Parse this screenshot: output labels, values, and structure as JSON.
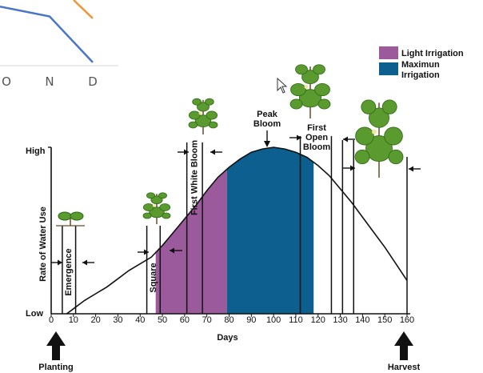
{
  "chart_data": [
    {
      "type": "line",
      "note_visible": "partial inset chart cropped at top-left",
      "x_ticks": [
        "O",
        "N",
        "D"
      ],
      "series": [
        {
          "color": "#f0963a",
          "values": [
            null,
            null,
            0.72
          ]
        },
        {
          "color": "#4a76c8",
          "values": [
            0.9,
            0.75,
            0.05
          ]
        }
      ]
    },
    {
      "type": "area",
      "xlabel": "Days",
      "ylabel": "Rate of Water Use",
      "y_ticks": [
        "Low",
        "High"
      ],
      "x_ticks": [
        0,
        10,
        20,
        30,
        40,
        50,
        60,
        70,
        80,
        90,
        100,
        110,
        120,
        130,
        140,
        150,
        160
      ],
      "xlim": [
        0,
        160
      ],
      "ylim": [
        0,
        1
      ],
      "curve": {
        "x": [
          7,
          10,
          15,
          20,
          25,
          30,
          35,
          40,
          45,
          50,
          55,
          60,
          65,
          70,
          75,
          80,
          85,
          90,
          95,
          100,
          105,
          110,
          115,
          120,
          125,
          130,
          135,
          140,
          145,
          150,
          155,
          160
        ],
        "y": [
          0.0,
          0.03,
          0.08,
          0.12,
          0.16,
          0.21,
          0.26,
          0.3,
          0.34,
          0.41,
          0.49,
          0.57,
          0.65,
          0.74,
          0.82,
          0.88,
          0.93,
          0.97,
          0.99,
          1.0,
          0.99,
          0.97,
          0.94,
          0.89,
          0.83,
          0.75,
          0.67,
          0.58,
          0.49,
          0.4,
          0.3,
          0.2
        ]
      },
      "shaded_regions": [
        {
          "name": "Light Irrigation",
          "x0": 47,
          "x1": 79,
          "color": "#9b5a9b"
        },
        {
          "name": "Maximun Irrigation",
          "x0": 79,
          "x1": 118,
          "color": "#0d5f8f"
        }
      ],
      "legend": {
        "placement": "top-right",
        "entries": [
          {
            "label": "Light Irrigation",
            "color": "#9b5a9b"
          },
          {
            "label": "Maximun Irrigation",
            "color": "#0d5f8f"
          }
        ]
      },
      "stages": [
        {
          "label": "Emergence",
          "x0": 5,
          "x1": 11
        },
        {
          "label": "Square",
          "x0": 43,
          "x1": 49
        },
        {
          "label": "First White Bloom",
          "x0": 61,
          "x1": 68
        },
        {
          "label_lines": [
            "Peak",
            "Bloom"
          ],
          "x": 102
        },
        {
          "label_lines": [
            "First",
            "Open",
            "Bloom"
          ],
          "x0": 112,
          "x1": 126
        },
        {
          "x0": 136,
          "x1": 160
        }
      ],
      "stage_lines_x": [
        5,
        11,
        43,
        49,
        61,
        68,
        112,
        126,
        131,
        136,
        160
      ],
      "events": [
        {
          "label": "Planting",
          "x": 0
        },
        {
          "label": "Harvest",
          "x": 160
        }
      ]
    }
  ]
}
